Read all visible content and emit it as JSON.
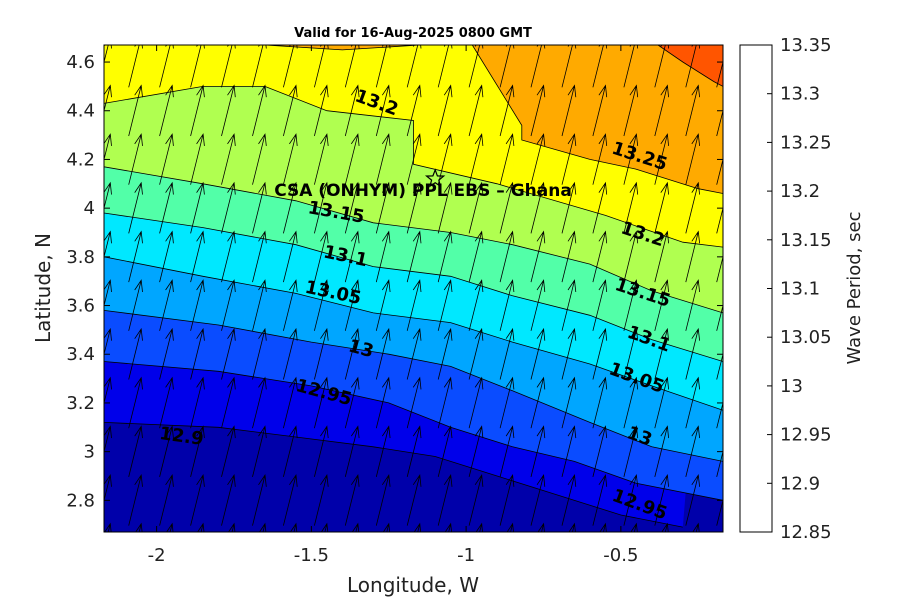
{
  "chart_data": {
    "type": "heatmap",
    "title": "Valid for 16-Aug-2025 0800 GMT",
    "xlabel": "Longitude, W",
    "ylabel": "Latitude, N",
    "xlim": [
      -2.17,
      -0.17
    ],
    "ylim": [
      2.67,
      4.67
    ],
    "x_ticks": [
      -2,
      -1.5,
      -1,
      -0.5
    ],
    "y_ticks": [
      2.8,
      3,
      3.2,
      3.4,
      3.6,
      3.8,
      4,
      4.2,
      4.4,
      4.6
    ],
    "colorbar": {
      "label": "Wave Period, sec",
      "levels": [
        12.85,
        12.9,
        12.95,
        13,
        13.05,
        13.1,
        13.15,
        13.2,
        13.25,
        13.3,
        13.35
      ],
      "colors": [
        "#0000aa",
        "#0000ea",
        "#0a4cff",
        "#00a6ff",
        "#00e8ff",
        "#52ffa8",
        "#b0ff50",
        "#ffff00",
        "#ffaa00",
        "#ff5500"
      ]
    },
    "contour_levels": [
      12.9,
      12.95,
      13,
      13.05,
      13.1,
      13.15,
      13.2,
      13.25,
      13.3
    ],
    "contour_lines": [
      {
        "level": 12.9,
        "points": [
          [
            -2.17,
            3.12
          ],
          [
            -1.8,
            3.1
          ],
          [
            -1.55,
            3.06
          ],
          [
            -1.3,
            3.02
          ],
          [
            -1.1,
            2.98
          ],
          [
            -0.9,
            2.9
          ],
          [
            -0.7,
            2.82
          ],
          [
            -0.5,
            2.74
          ],
          [
            -0.3,
            2.69
          ]
        ]
      },
      {
        "level": 12.95,
        "points": [
          [
            -2.17,
            3.37
          ],
          [
            -1.8,
            3.33
          ],
          [
            -1.5,
            3.27
          ],
          [
            -1.25,
            3.2
          ],
          [
            -1.05,
            3.1
          ],
          [
            -0.85,
            3.02
          ],
          [
            -0.65,
            2.96
          ],
          [
            -0.45,
            2.87
          ],
          [
            -0.17,
            2.8
          ]
        ]
      },
      {
        "level": 13,
        "points": [
          [
            -2.17,
            3.58
          ],
          [
            -1.8,
            3.52
          ],
          [
            -1.5,
            3.45
          ],
          [
            -1.25,
            3.4
          ],
          [
            -1.05,
            3.35
          ],
          [
            -0.85,
            3.25
          ],
          [
            -0.6,
            3.12
          ],
          [
            -0.4,
            3.02
          ],
          [
            -0.17,
            2.96
          ]
        ]
      },
      {
        "level": 13.05,
        "points": [
          [
            -2.17,
            3.8
          ],
          [
            -1.85,
            3.72
          ],
          [
            -1.55,
            3.65
          ],
          [
            -1.3,
            3.57
          ],
          [
            -1.05,
            3.53
          ],
          [
            -0.85,
            3.45
          ],
          [
            -0.6,
            3.36
          ],
          [
            -0.4,
            3.27
          ],
          [
            -0.17,
            3.17
          ]
        ]
      },
      {
        "level": 13.1,
        "points": [
          [
            -2.17,
            3.98
          ],
          [
            -1.85,
            3.92
          ],
          [
            -1.55,
            3.85
          ],
          [
            -1.3,
            3.76
          ],
          [
            -1.05,
            3.72
          ],
          [
            -0.85,
            3.64
          ],
          [
            -0.6,
            3.56
          ],
          [
            -0.4,
            3.46
          ],
          [
            -0.17,
            3.37
          ]
        ]
      },
      {
        "level": 13.15,
        "points": [
          [
            -2.17,
            4.17
          ],
          [
            -1.85,
            4.1
          ],
          [
            -1.55,
            4.03
          ],
          [
            -1.3,
            3.94
          ],
          [
            -1.05,
            3.9
          ],
          [
            -0.85,
            3.85
          ],
          [
            -0.6,
            3.77
          ],
          [
            -0.4,
            3.66
          ],
          [
            -0.17,
            3.57
          ]
        ]
      },
      {
        "level": 13.2,
        "points": [
          [
            -2.17,
            4.43
          ],
          [
            -1.85,
            4.5
          ],
          [
            -1.65,
            4.5
          ],
          [
            -1.45,
            4.4
          ],
          [
            -1.17,
            4.36
          ],
          [
            -1.17,
            4.18
          ],
          [
            -0.9,
            4.1
          ],
          [
            -0.55,
            3.97
          ],
          [
            -0.3,
            3.86
          ],
          [
            -0.17,
            3.84
          ]
        ]
      },
      {
        "level": 13.25,
        "points": [
          [
            -1.65,
            4.67
          ],
          [
            -1.4,
            4.65
          ],
          [
            -1.15,
            4.67
          ]
        ]
      },
      {
        "level": 13.25,
        "points": [
          [
            -0.98,
            4.67
          ],
          [
            -0.82,
            4.34
          ],
          [
            -0.82,
            4.28
          ],
          [
            -0.6,
            4.2
          ],
          [
            -0.45,
            4.16
          ],
          [
            -0.25,
            4.08
          ],
          [
            -0.17,
            4.06
          ]
        ]
      },
      {
        "level": 13.3,
        "points": [
          [
            -0.38,
            4.67
          ],
          [
            -0.3,
            4.6
          ],
          [
            -0.2,
            4.52
          ],
          [
            -0.17,
            4.5
          ]
        ]
      }
    ],
    "contour_labels": [
      {
        "text": "13.2",
        "x": -1.29,
        "y": 4.43,
        "angle": 20
      },
      {
        "text": "13.25",
        "x": -0.44,
        "y": 4.21,
        "angle": 18
      },
      {
        "text": "13.15",
        "x": -1.42,
        "y": 3.98,
        "angle": 10
      },
      {
        "text": "13.2",
        "x": -0.43,
        "y": 3.89,
        "angle": 18
      },
      {
        "text": "13.1",
        "x": -1.39,
        "y": 3.8,
        "angle": 12
      },
      {
        "text": "13.15",
        "x": -0.43,
        "y": 3.65,
        "angle": 18
      },
      {
        "text": "13.05",
        "x": -1.43,
        "y": 3.65,
        "angle": 12
      },
      {
        "text": "13.1",
        "x": -0.41,
        "y": 3.46,
        "angle": 20
      },
      {
        "text": "13",
        "x": -1.34,
        "y": 3.42,
        "angle": 15
      },
      {
        "text": "13.05",
        "x": -0.45,
        "y": 3.3,
        "angle": 20
      },
      {
        "text": "12.95",
        "x": -1.46,
        "y": 3.24,
        "angle": 15
      },
      {
        "text": "13",
        "x": -0.44,
        "y": 3.06,
        "angle": 20
      },
      {
        "text": "12.9",
        "x": -1.92,
        "y": 3.06,
        "angle": 8
      },
      {
        "text": "12.95",
        "x": -0.44,
        "y": 2.78,
        "angle": 20
      }
    ],
    "annotation": {
      "text": "CSA (ONHYM) PPL EBS  – Ghana",
      "x": -1.62,
      "y": 4.05
    },
    "site_marker": {
      "x": -1.1,
      "y": 4.12,
      "symbol": "star"
    },
    "vectors": {
      "direction_deg_from_north": 14,
      "spacing_lon": 0.1,
      "spacing_lat": 0.2
    }
  }
}
